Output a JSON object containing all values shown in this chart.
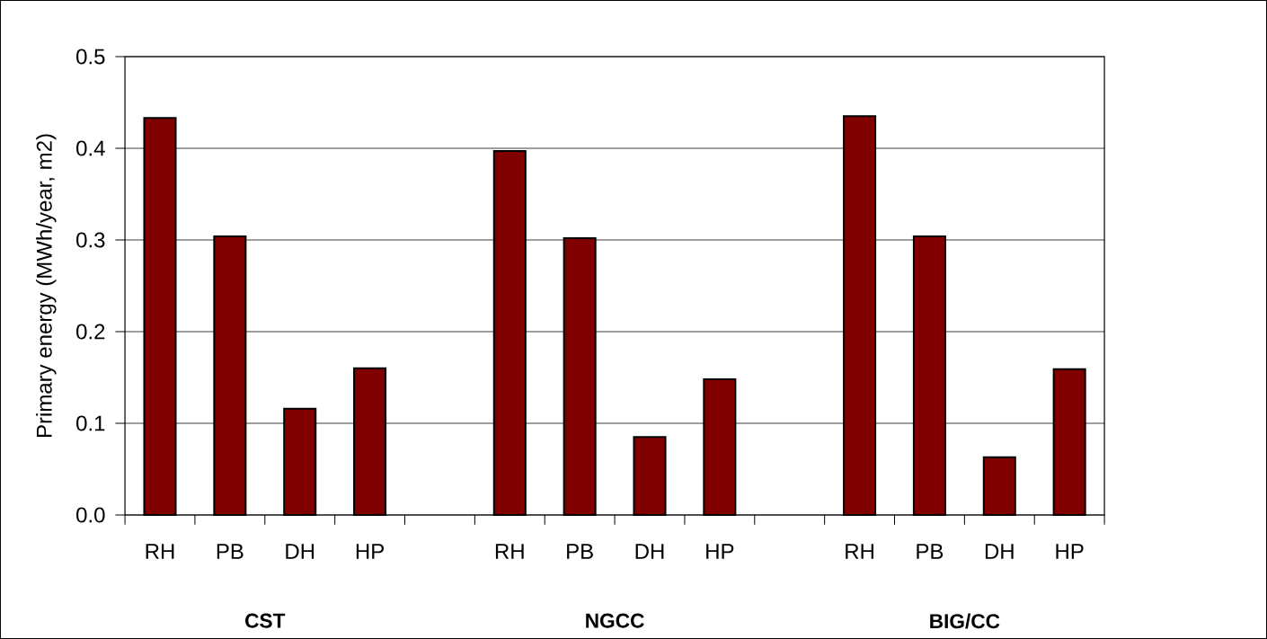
{
  "chart_data": {
    "type": "bar",
    "ylabel": "Primary energy (MWh/year, m2)",
    "categories": [
      "RH",
      "PB",
      "DH",
      "HP",
      null,
      "RH",
      "PB",
      "DH",
      "HP",
      null,
      "RH",
      "PB",
      "DH",
      "HP"
    ],
    "values": [
      0.433,
      0.304,
      0.116,
      0.16,
      null,
      0.397,
      0.302,
      0.085,
      0.148,
      null,
      0.435,
      0.304,
      0.063,
      0.159
    ],
    "color": "#800000",
    "ylim": [
      0,
      0.5
    ],
    "yticks": [
      {
        "value": 0,
        "label": "0.0"
      },
      {
        "value": 0.1,
        "label": "0.1"
      },
      {
        "value": 0.2,
        "label": "0.2"
      },
      {
        "value": 0.3,
        "label": "0.3"
      },
      {
        "value": 0.4,
        "label": "0.4"
      },
      {
        "value": 0.5,
        "label": "0.5"
      }
    ],
    "grid": "y",
    "annotations": [
      "CST",
      "NGCC",
      "BIG/CC"
    ]
  }
}
